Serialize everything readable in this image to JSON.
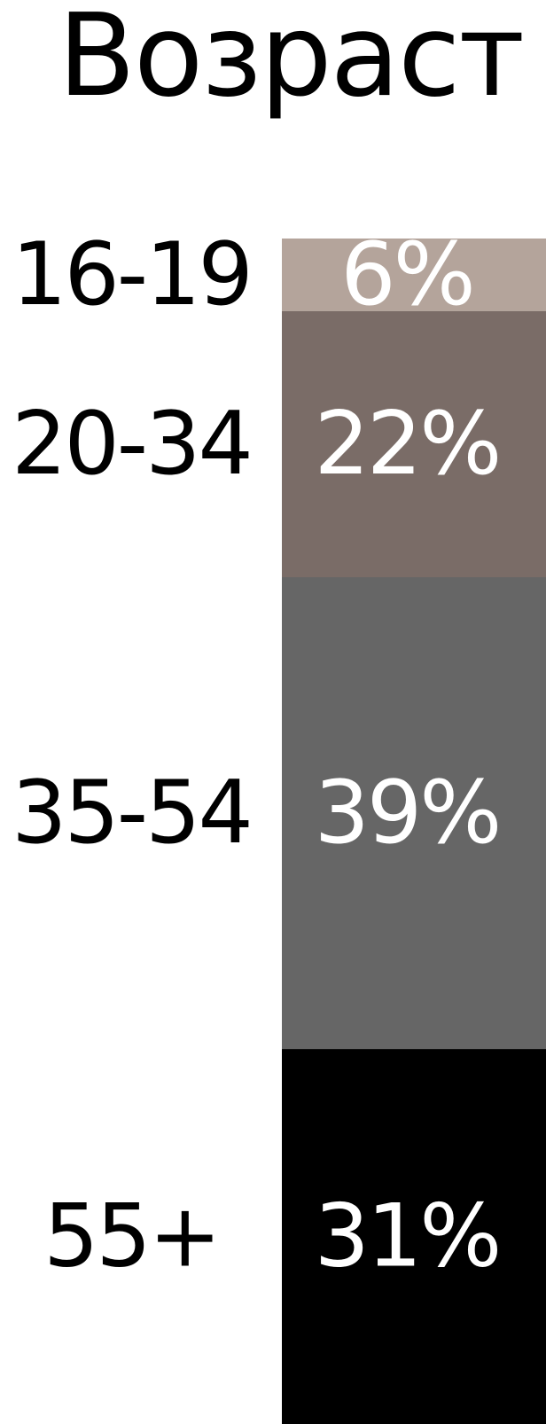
{
  "chart_data": {
    "type": "bar",
    "title": "Возраст",
    "categories": [
      "16-19",
      "20-34",
      "35-54",
      "55+"
    ],
    "values": [
      6,
      22,
      39,
      31
    ],
    "value_labels": [
      "6%",
      "22%",
      "39%",
      "31%"
    ],
    "unit": "%",
    "stacked": true,
    "orientation": "vertical",
    "colors": [
      "#b4a49b",
      "#7a6c67",
      "#666666",
      "#000000"
    ]
  }
}
